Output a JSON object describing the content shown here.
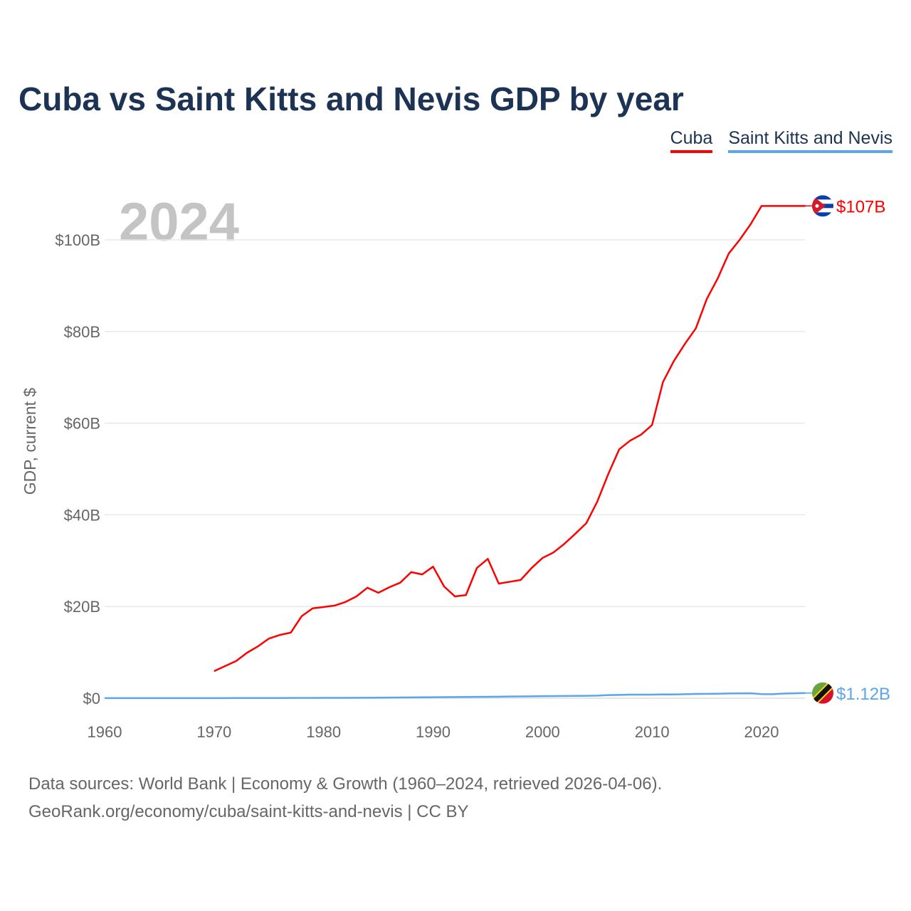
{
  "title": "Cuba vs Saint Kitts and Nevis GDP by year",
  "legend": [
    "Cuba",
    "Saint Kitts and Nevis"
  ],
  "year_label": "2024",
  "footer": {
    "line1": "Data sources: World Bank | Economy & Growth (1960–2024, retrieved 2026-04-06).",
    "line2": "GeoRank.org/economy/cuba/saint-kitts-and-nevis | CC BY"
  },
  "colors": {
    "cuba": "#ff0000",
    "skn": "#5aa5ee"
  },
  "chart_data": {
    "type": "line",
    "title": "Cuba vs Saint Kitts and Nevis GDP by year",
    "xlabel": "",
    "ylabel": "GDP, current $",
    "xlim": [
      1960,
      2024
    ],
    "ylim": [
      0,
      110
    ],
    "x_ticks": [
      1960,
      1970,
      1980,
      1990,
      2000,
      2010,
      2020
    ],
    "x_tick_labels": [
      "1960",
      "1970",
      "1980",
      "1990",
      "2000",
      "2010",
      "2020"
    ],
    "y_ticks": [
      0,
      20,
      40,
      60,
      80,
      100
    ],
    "y_tick_labels": [
      "$0",
      "$20B",
      "$40B",
      "$60B",
      "$80B",
      "$100B"
    ],
    "grid": true,
    "legend_position": "top-right",
    "series": [
      {
        "name": "Cuba",
        "unit": "billion USD",
        "end_label": "$107B",
        "start_year": 1970,
        "values": [
          5.9,
          7.0,
          8.1,
          9.9,
          11.3,
          13.0,
          13.8,
          14.3,
          17.9,
          19.6,
          19.9,
          20.2,
          21.0,
          22.2,
          24.1,
          23.0,
          24.2,
          25.2,
          27.5,
          27.0,
          28.7,
          24.4,
          22.2,
          22.5,
          28.4,
          30.4,
          25.0,
          25.4,
          25.8,
          28.4,
          30.6,
          31.8,
          33.7,
          35.9,
          38.2,
          42.9,
          48.9,
          54.3,
          56.2,
          57.5,
          59.6,
          69.0,
          73.6,
          77.3,
          80.7,
          87.1,
          91.6,
          97.0,
          100.0,
          103.4,
          107.4,
          107.4,
          107.4,
          107.4,
          107.4
        ]
      },
      {
        "name": "Saint Kitts and Nevis",
        "unit": "billion USD",
        "end_label": "$1.12B",
        "start_year": 1960,
        "values": [
          0.01,
          0.01,
          0.01,
          0.01,
          0.01,
          0.01,
          0.02,
          0.02,
          0.02,
          0.02,
          0.02,
          0.02,
          0.03,
          0.03,
          0.03,
          0.04,
          0.04,
          0.05,
          0.05,
          0.06,
          0.07,
          0.08,
          0.08,
          0.09,
          0.1,
          0.11,
          0.13,
          0.15,
          0.17,
          0.19,
          0.22,
          0.24,
          0.25,
          0.27,
          0.3,
          0.31,
          0.33,
          0.37,
          0.39,
          0.41,
          0.44,
          0.47,
          0.49,
          0.5,
          0.53,
          0.57,
          0.67,
          0.72,
          0.78,
          0.77,
          0.78,
          0.83,
          0.82,
          0.87,
          0.93,
          0.95,
          0.98,
          1.02,
          1.05,
          1.06,
          0.89,
          0.88,
          1.0,
          1.07,
          1.12
        ]
      }
    ]
  }
}
